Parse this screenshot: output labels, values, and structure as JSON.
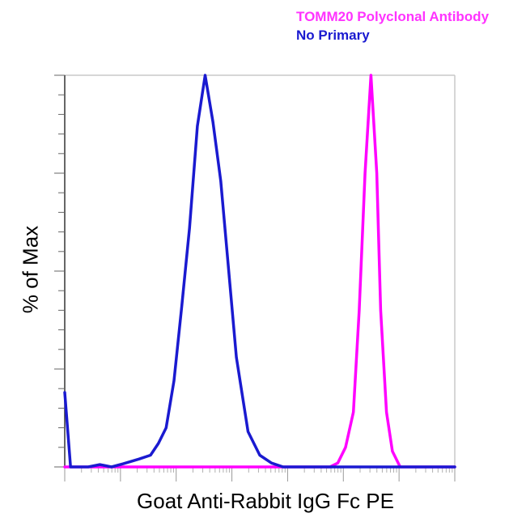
{
  "chart_data": {
    "type": "line",
    "title": "",
    "xlabel": "Goat Anti-Rabbit IgG Fc PE",
    "ylabel": "% of Max",
    "xlim": [
      0,
      100
    ],
    "ylim": [
      0,
      100
    ],
    "x_scale": "log",
    "grid": false,
    "legend_position": "top-right",
    "series": [
      {
        "name": "TOMM20 Polyclonal Antibody",
        "color": "#ff00ff",
        "x": [
          0,
          10,
          20,
          30,
          40,
          50,
          60,
          68,
          70,
          72,
          74,
          75.5,
          77,
          78.5,
          80,
          81,
          82.5,
          84,
          86,
          88,
          90,
          95,
          100
        ],
        "y": [
          0,
          0,
          0,
          0,
          0,
          0,
          0,
          0,
          1,
          5,
          14,
          40,
          75,
          100,
          75,
          40,
          14,
          4,
          0,
          0,
          0,
          0,
          0
        ]
      },
      {
        "name": "No Primary",
        "color": "#1a1ad0",
        "x": [
          0,
          1.5,
          2,
          6,
          9,
          12,
          15,
          19,
          22,
          24,
          26,
          28,
          30,
          32,
          34,
          36,
          38,
          40,
          44,
          47,
          50,
          53,
          56,
          58,
          60,
          65,
          70,
          80,
          100
        ],
        "y": [
          19,
          0,
          0,
          0,
          0.6,
          0,
          0.8,
          2,
          3,
          6,
          10,
          22,
          41,
          61,
          87,
          100,
          88,
          73,
          28,
          9,
          3,
          1,
          0,
          0,
          0,
          0,
          0,
          0,
          0
        ]
      }
    ]
  }
}
